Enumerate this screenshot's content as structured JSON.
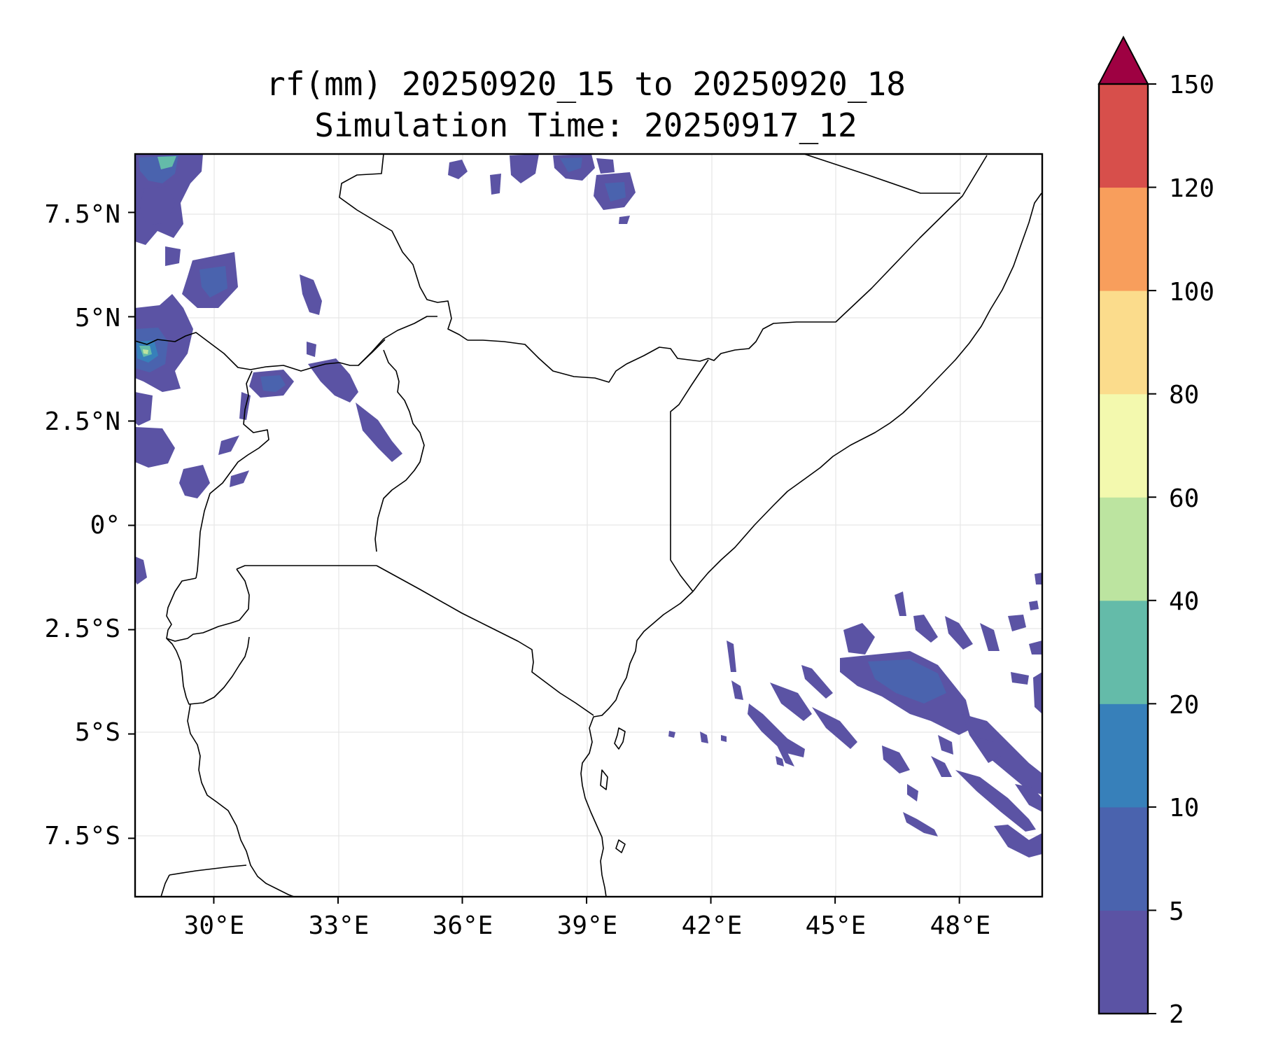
{
  "title_line1": "rf(mm) 20250920_15 to 20250920_18",
  "title_line2": "Simulation Time: 20250917_12",
  "map": {
    "lon_range": [
      28.1,
      50.0
    ],
    "lat_range": [
      -8.9,
      8.9
    ],
    "x_ticks": [
      {
        "value": 30,
        "label": "30°E"
      },
      {
        "value": 33,
        "label": "33°E"
      },
      {
        "value": 36,
        "label": "36°E"
      },
      {
        "value": 39,
        "label": "39°E"
      },
      {
        "value": 42,
        "label": "42°E"
      },
      {
        "value": 45,
        "label": "45°E"
      },
      {
        "value": 48,
        "label": "48°E"
      }
    ],
    "y_ticks": [
      {
        "value": 7.5,
        "label": "7.5°N"
      },
      {
        "value": 5,
        "label": "5°N"
      },
      {
        "value": 2.5,
        "label": "2.5°N"
      },
      {
        "value": 0,
        "label": "0°"
      },
      {
        "value": -2.5,
        "label": "2.5°S"
      },
      {
        "value": -5,
        "label": "5°S"
      },
      {
        "value": -7.5,
        "label": "7.5°S"
      }
    ],
    "grid": true,
    "borders": true
  },
  "colorbar": {
    "levels": [
      "2",
      "5",
      "10",
      "20",
      "40",
      "60",
      "80",
      "100",
      "120",
      "150"
    ],
    "colors": [
      "#5b53a4",
      "#4a63ae",
      "#3780ba",
      "#64bba9",
      "#bce4a0",
      "#f3f9ae",
      "#fbdc8c",
      "#f89e5c",
      "#d74f4b",
      "#d1404b"
    ],
    "extend_color": "#9e0142",
    "extend": "max"
  },
  "precip_colors": {
    "light": "#5b53a4",
    "moderate": "#4a63ae",
    "heavy": "#3780ba",
    "very_heavy": "#64bba9",
    "extreme": "#bce4a0"
  }
}
